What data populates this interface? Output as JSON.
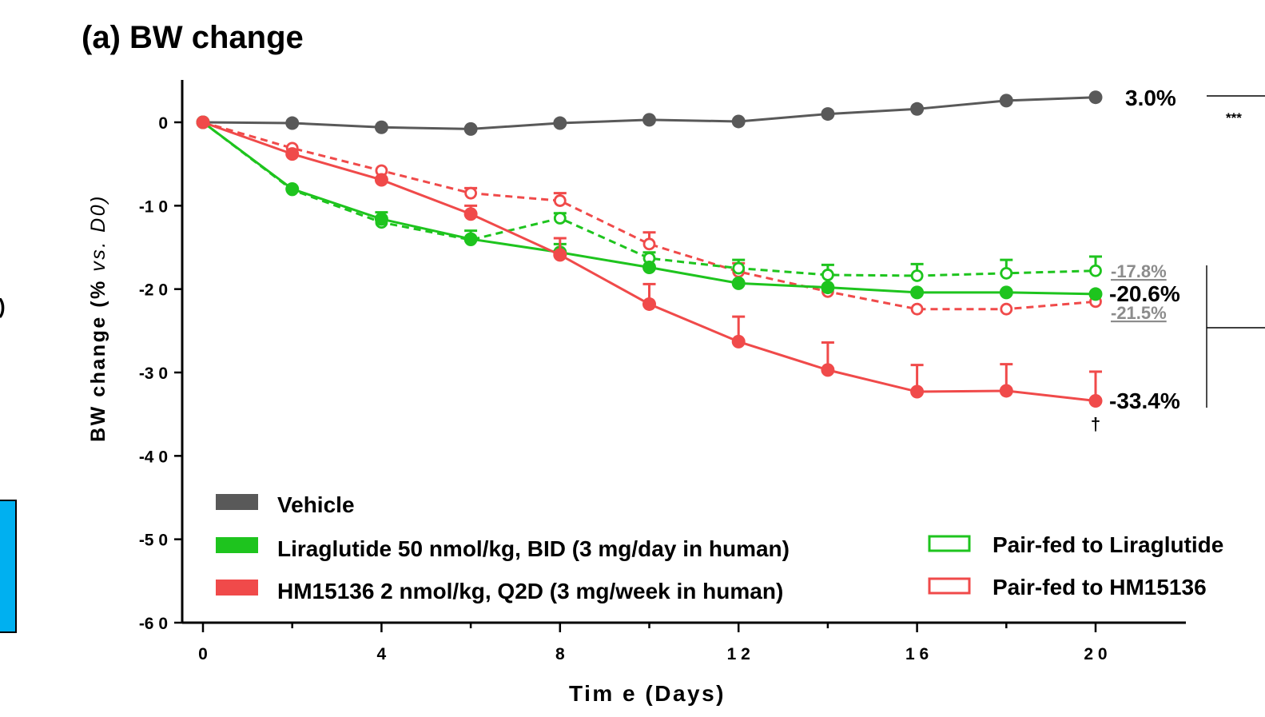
{
  "chart_data": {
    "type": "line",
    "title": "(a) BW change",
    "xlabel": "Tim e (Days)",
    "ylabel_parts": [
      "BW change (%",
      " vs. D0)"
    ],
    "xlim": [
      0,
      20
    ],
    "ylim": [
      -60,
      0
    ],
    "xticks": [
      0,
      4,
      8,
      12,
      16,
      20
    ],
    "xtick_labels": [
      "0",
      "4",
      "8",
      "1 2",
      "1 6",
      "2 0"
    ],
    "yticks": [
      0,
      -10,
      -20,
      -30,
      -40,
      -50,
      -60
    ],
    "ytick_labels": [
      "0",
      "-1 0",
      "-2 0",
      "-3 0",
      "-4 0",
      "-5 0",
      "-6 0"
    ],
    "x": [
      0,
      2,
      4,
      6,
      8,
      10,
      12,
      14,
      16,
      18,
      20
    ],
    "grid": false,
    "legend_position": "bottom",
    "series": [
      {
        "name": "Vehicle",
        "key": "vehicle",
        "color": "#595959",
        "style": "solid",
        "marker": "filled",
        "values": [
          0,
          -0.1,
          -0.6,
          -0.8,
          -0.1,
          0.3,
          0.1,
          1.0,
          1.6,
          2.6,
          3.0
        ],
        "err": [
          0,
          0,
          0,
          0,
          0,
          0,
          0,
          0,
          0,
          0,
          0
        ],
        "end_label": "3.0%"
      },
      {
        "name": "Pair-fed to HM15136",
        "key": "pairfed_hm",
        "color": "#f04a4a",
        "style": "dashed",
        "marker": "open",
        "values": [
          0,
          -3.1,
          -5.8,
          -8.5,
          -9.4,
          -14.6,
          -17.9,
          -20.3,
          -22.4,
          -22.4,
          -21.5
        ],
        "err": [
          0,
          0,
          0,
          0.6,
          0.9,
          1.4,
          1.0,
          0,
          0,
          0,
          0
        ],
        "end_label": "-21.5%"
      },
      {
        "name": "Pair-fed to Liraglutide",
        "key": "pairfed_lira",
        "color": "#1ec41e",
        "style": "dashed",
        "marker": "open",
        "values": [
          0,
          -8.1,
          -12.0,
          -14.1,
          -11.5,
          -16.3,
          -17.5,
          -18.3,
          -18.4,
          -18.1,
          -17.8
        ],
        "err": [
          0,
          0,
          0,
          0,
          0.6,
          0.7,
          1.0,
          1.2,
          1.4,
          1.6,
          1.7
        ],
        "end_label": "-17.8%"
      },
      {
        "name": "Liraglutide 50 nmol/kg, BID (3 mg/day in human)",
        "key": "liraglutide",
        "color": "#1ec41e",
        "style": "solid",
        "marker": "filled",
        "values": [
          0,
          -8.0,
          -11.6,
          -14.0,
          -15.6,
          -17.4,
          -19.3,
          -19.8,
          -20.4,
          -20.4,
          -20.6
        ],
        "err": [
          0,
          0,
          0.8,
          1.0,
          1.0,
          0,
          0,
          0,
          0,
          0,
          0
        ],
        "end_label": "-20.6%"
      },
      {
        "name": "HM15136 2 nmol/kg, Q2D (3 mg/week in human)",
        "key": "hm15136",
        "color": "#f04a4a",
        "style": "solid",
        "marker": "filled",
        "values": [
          0,
          -3.8,
          -6.9,
          -11.0,
          -15.9,
          -21.8,
          -26.3,
          -29.7,
          -32.3,
          -32.2,
          -33.4
        ],
        "err": [
          0,
          0,
          0,
          1.0,
          2.0,
          2.4,
          3.0,
          3.3,
          3.2,
          3.2,
          3.5
        ],
        "end_label": "-33.4%"
      }
    ],
    "annotations": {
      "dagger": "†",
      "significance": "***"
    }
  }
}
